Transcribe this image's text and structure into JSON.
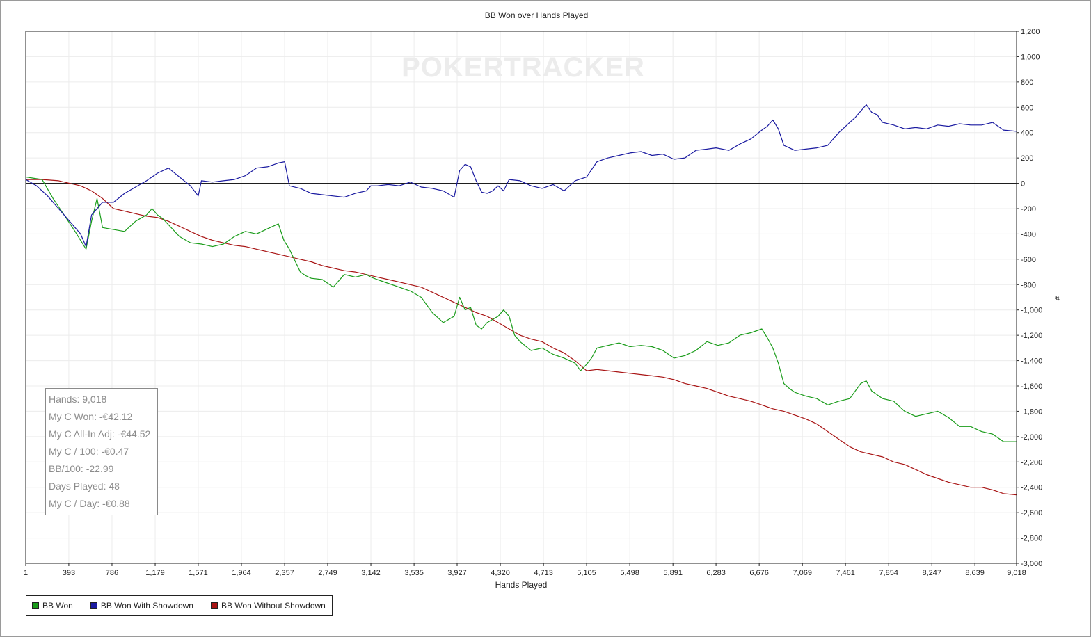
{
  "chart_data": {
    "type": "line",
    "title": "BB Won over Hands Played",
    "xlabel": "Hands Played",
    "ylabel": "#",
    "xlim": [
      1,
      9018
    ],
    "ylim": [
      -3000,
      1200
    ],
    "x_ticks": [
      "1",
      "393",
      "786",
      "1,179",
      "1,571",
      "1,964",
      "2,357",
      "2,749",
      "3,142",
      "3,535",
      "3,927",
      "4,320",
      "4,713",
      "5,105",
      "5,498",
      "5,891",
      "6,283",
      "6,676",
      "7,069",
      "7,461",
      "7,854",
      "8,247",
      "8,639",
      "9,018"
    ],
    "y_ticks": [
      "1,200",
      "1,000",
      "800",
      "600",
      "400",
      "200",
      "0",
      "-200",
      "-400",
      "-600",
      "-800",
      "-1,000",
      "-1,200",
      "-1,400",
      "-1,600",
      "-1,800",
      "-2,000",
      "-2,200",
      "-2,400",
      "-2,600",
      "-2,800",
      "-3,000"
    ],
    "grid": true,
    "legend_position": "bottom-left",
    "watermark": "POKERTRACKER",
    "series": [
      {
        "name": "BB Won",
        "color": "#1a9c1a",
        "x": [
          1,
          150,
          250,
          350,
          450,
          550,
          600,
          650,
          700,
          900,
          1000,
          1100,
          1150,
          1200,
          1250,
          1400,
          1500,
          1600,
          1700,
          1800,
          1900,
          2000,
          2100,
          2200,
          2300,
          2350,
          2400,
          2450,
          2500,
          2550,
          2600,
          2700,
          2800,
          2900,
          3000,
          3100,
          3142,
          3200,
          3300,
          3400,
          3500,
          3600,
          3700,
          3800,
          3900,
          3950,
          4000,
          4050,
          4100,
          4150,
          4200,
          4300,
          4350,
          4400,
          4450,
          4500,
          4600,
          4700,
          4800,
          4900,
          5000,
          5050,
          5105,
          5150,
          5200,
          5300,
          5400,
          5500,
          5600,
          5700,
          5800,
          5900,
          6000,
          6100,
          6200,
          6300,
          6400,
          6500,
          6600,
          6700,
          6750,
          6800,
          6850,
          6900,
          6950,
          7000,
          7100,
          7200,
          7300,
          7400,
          7500,
          7600,
          7650,
          7700,
          7800,
          7900,
          8000,
          8100,
          8200,
          8300,
          8400,
          8500,
          8600,
          8700,
          8800,
          8900,
          9018
        ],
        "y": [
          50,
          30,
          -120,
          -250,
          -380,
          -520,
          -300,
          -120,
          -350,
          -380,
          -300,
          -250,
          -200,
          -250,
          -280,
          -420,
          -470,
          -480,
          -500,
          -480,
          -420,
          -380,
          -400,
          -360,
          -320,
          -450,
          -520,
          -610,
          -700,
          -730,
          -750,
          -760,
          -820,
          -720,
          -740,
          -720,
          -740,
          -760,
          -790,
          -820,
          -850,
          -900,
          -1020,
          -1100,
          -1050,
          -900,
          -1000,
          -980,
          -1120,
          -1150,
          -1100,
          -1050,
          -1000,
          -1050,
          -1200,
          -1250,
          -1320,
          -1300,
          -1350,
          -1380,
          -1420,
          -1480,
          -1430,
          -1380,
          -1300,
          -1280,
          -1260,
          -1290,
          -1280,
          -1290,
          -1320,
          -1380,
          -1360,
          -1320,
          -1250,
          -1280,
          -1260,
          -1200,
          -1180,
          -1150,
          -1220,
          -1300,
          -1420,
          -1580,
          -1620,
          -1650,
          -1680,
          -1700,
          -1750,
          -1720,
          -1700,
          -1580,
          -1560,
          -1640,
          -1700,
          -1720,
          -1800,
          -1840,
          -1820,
          -1800,
          -1850,
          -1920,
          -1920,
          -1960,
          -1980,
          -2040,
          -2040
        ]
      },
      {
        "name": "BB Won With Showdown",
        "color": "#1a1aa0",
        "x": [
          1,
          100,
          200,
          300,
          400,
          450,
          500,
          550,
          600,
          700,
          800,
          900,
          1000,
          1100,
          1200,
          1300,
          1400,
          1500,
          1571,
          1600,
          1700,
          1800,
          1900,
          2000,
          2100,
          2200,
          2300,
          2357,
          2400,
          2500,
          2600,
          2700,
          2800,
          2900,
          3000,
          3100,
          3142,
          3200,
          3300,
          3400,
          3500,
          3600,
          3700,
          3800,
          3900,
          3950,
          4000,
          4050,
          4100,
          4150,
          4200,
          4250,
          4300,
          4350,
          4400,
          4500,
          4600,
          4700,
          4800,
          4900,
          5000,
          5105,
          5200,
          5300,
          5400,
          5500,
          5600,
          5700,
          5800,
          5900,
          6000,
          6100,
          6200,
          6283,
          6400,
          6500,
          6600,
          6700,
          6750,
          6800,
          6850,
          6900,
          7000,
          7100,
          7200,
          7300,
          7400,
          7500,
          7550,
          7650,
          7700,
          7750,
          7800,
          7900,
          8000,
          8100,
          8200,
          8300,
          8400,
          8500,
          8600,
          8700,
          8800,
          8900,
          9018
        ],
        "y": [
          30,
          -20,
          -100,
          -200,
          -300,
          -350,
          -400,
          -500,
          -250,
          -150,
          -150,
          -80,
          -30,
          20,
          80,
          120,
          50,
          -20,
          -100,
          20,
          10,
          20,
          30,
          60,
          120,
          130,
          160,
          170,
          -20,
          -40,
          -80,
          -90,
          -100,
          -110,
          -80,
          -60,
          -20,
          -20,
          -10,
          -20,
          10,
          -30,
          -40,
          -60,
          -110,
          100,
          150,
          130,
          20,
          -70,
          -80,
          -60,
          -20,
          -60,
          30,
          20,
          -20,
          -40,
          -10,
          -60,
          20,
          50,
          170,
          200,
          220,
          240,
          250,
          220,
          230,
          190,
          200,
          260,
          270,
          280,
          260,
          310,
          350,
          420,
          450,
          500,
          430,
          300,
          260,
          270,
          280,
          300,
          400,
          480,
          520,
          620,
          560,
          540,
          480,
          460,
          430,
          440,
          430,
          460,
          450,
          470,
          460,
          460,
          480,
          420,
          410
        ]
      },
      {
        "name": "BB Won Without Showdown",
        "color": "#a81414",
        "x": [
          1,
          150,
          300,
          400,
          500,
          600,
          700,
          800,
          900,
          1000,
          1100,
          1200,
          1300,
          1400,
          1500,
          1600,
          1700,
          1800,
          1900,
          2000,
          2100,
          2200,
          2300,
          2400,
          2500,
          2600,
          2700,
          2800,
          2900,
          3000,
          3100,
          3200,
          3300,
          3400,
          3500,
          3600,
          3700,
          3800,
          3900,
          4000,
          4100,
          4200,
          4300,
          4400,
          4500,
          4600,
          4700,
          4800,
          4900,
          5000,
          5105,
          5200,
          5300,
          5400,
          5500,
          5600,
          5700,
          5800,
          5900,
          6000,
          6100,
          6200,
          6300,
          6400,
          6500,
          6600,
          6700,
          6800,
          6900,
          7000,
          7100,
          7200,
          7300,
          7400,
          7500,
          7600,
          7700,
          7800,
          7900,
          8000,
          8100,
          8200,
          8300,
          8400,
          8500,
          8600,
          8700,
          8800,
          8900,
          9018
        ],
        "y": [
          30,
          30,
          20,
          0,
          -20,
          -60,
          -120,
          -200,
          -220,
          -240,
          -260,
          -270,
          -300,
          -340,
          -380,
          -420,
          -450,
          -470,
          -490,
          -500,
          -520,
          -540,
          -560,
          -580,
          -600,
          -620,
          -650,
          -670,
          -690,
          -700,
          -720,
          -740,
          -760,
          -780,
          -800,
          -820,
          -860,
          -900,
          -940,
          -980,
          -1020,
          -1050,
          -1100,
          -1150,
          -1200,
          -1230,
          -1250,
          -1300,
          -1340,
          -1400,
          -1480,
          -1470,
          -1480,
          -1490,
          -1500,
          -1510,
          -1520,
          -1530,
          -1550,
          -1580,
          -1600,
          -1620,
          -1650,
          -1680,
          -1700,
          -1720,
          -1750,
          -1780,
          -1800,
          -1830,
          -1860,
          -1900,
          -1960,
          -2020,
          -2080,
          -2120,
          -2140,
          -2160,
          -2200,
          -2220,
          -2260,
          -2300,
          -2330,
          -2360,
          -2380,
          -2400,
          -2400,
          -2420,
          -2450,
          -2460
        ]
      }
    ]
  },
  "stats": {
    "hands": "Hands: 9,018",
    "won": "My C Won: -€42.12",
    "allin_adj": "My C All-In Adj: -€44.52",
    "per100": "My C / 100: -€0.47",
    "bb100": "BB/100: -22.99",
    "days": "Days Played: 48",
    "per_day": "My C / Day: -€0.88"
  }
}
